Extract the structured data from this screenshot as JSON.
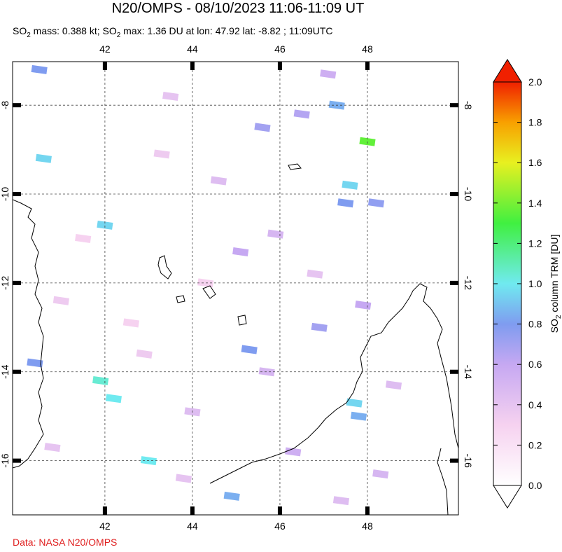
{
  "chart_data": {
    "type": "map",
    "title": "N20/OMPS - 08/10/2023 11:06-11:09 UT",
    "subtitle": [
      "SO",
      "2",
      " mass: 0.388 kt; SO",
      "2",
      " max: 1.36 DU at lon: 47.92 lat: -8.82 ; 11:09UTC"
    ],
    "xlim": [
      39.89,
      50.08
    ],
    "ylim": [
      -17.22,
      -7.02
    ],
    "xticks": [
      42,
      44,
      46,
      48
    ],
    "yticks": [
      -8,
      -10,
      -12,
      -14,
      -16
    ],
    "grid": true,
    "colorbar": {
      "label": [
        "SO",
        "2",
        " column TRM [DU]"
      ],
      "lim": [
        0,
        2
      ],
      "ticks": [
        {
          "value": 0,
          "label": "0.0"
        },
        {
          "value": 0.2,
          "label": "0.2"
        },
        {
          "value": 0.4,
          "label": "0.4"
        },
        {
          "value": 0.6,
          "label": "0.6"
        },
        {
          "value": 0.8,
          "label": "0.8"
        },
        {
          "value": 1,
          "label": "1.0"
        },
        {
          "value": 1.2,
          "label": "1.2"
        },
        {
          "value": 1.4,
          "label": "1.4"
        },
        {
          "value": 1.6,
          "label": "1.6"
        },
        {
          "value": 1.8,
          "label": "1.8"
        },
        {
          "value": 2,
          "label": "2.0"
        }
      ]
    },
    "pixels": {
      "lon": [
        48.0,
        47.6,
        47.3,
        47.5,
        48.2,
        47.8,
        47.7,
        43.0,
        41.9,
        42.2,
        45.3,
        40.5,
        40.6,
        42.0,
        45.6,
        46.5,
        47.1,
        46.9,
        45.1,
        44.6,
        43.5,
        41.0,
        40.8,
        42.6,
        44.0,
        45.9,
        46.3,
        47.9,
        48.6,
        43.3,
        41.5,
        44.9,
        46.8,
        48.3,
        42.9,
        40.4,
        44.3,
        45.7,
        47.4,
        43.8
      ],
      "lat": [
        -8.82,
        -9.8,
        -8.0,
        -10.2,
        -10.2,
        -15.0,
        -14.7,
        -16.0,
        -14.2,
        -14.6,
        -13.5,
        -7.2,
        -9.2,
        -10.7,
        -8.5,
        -8.2,
        -7.3,
        -13.0,
        -11.3,
        -9.7,
        -7.8,
        -12.4,
        -15.7,
        -12.9,
        -14.9,
        -10.9,
        -15.8,
        -12.5,
        -14.3,
        -9.1,
        -11.0,
        -16.8,
        -11.8,
        -16.3,
        -13.6,
        -13.8,
        -12.0,
        -14.0,
        -16.9,
        -16.4
      ],
      "values": [
        1.36,
        0.95,
        0.85,
        0.8,
        0.75,
        0.85,
        0.95,
        1.0,
        1.05,
        1.0,
        0.8,
        0.8,
        0.95,
        0.95,
        0.7,
        0.65,
        0.55,
        0.7,
        0.6,
        0.45,
        0.4,
        0.35,
        0.4,
        0.3,
        0.45,
        0.5,
        0.55,
        0.6,
        0.45,
        0.35,
        0.3,
        0.85,
        0.4,
        0.5,
        0.35,
        0.8,
        0.3,
        0.5,
        0.45,
        0.4
      ]
    },
    "source": "Data: NASA N20/OMPS"
  }
}
